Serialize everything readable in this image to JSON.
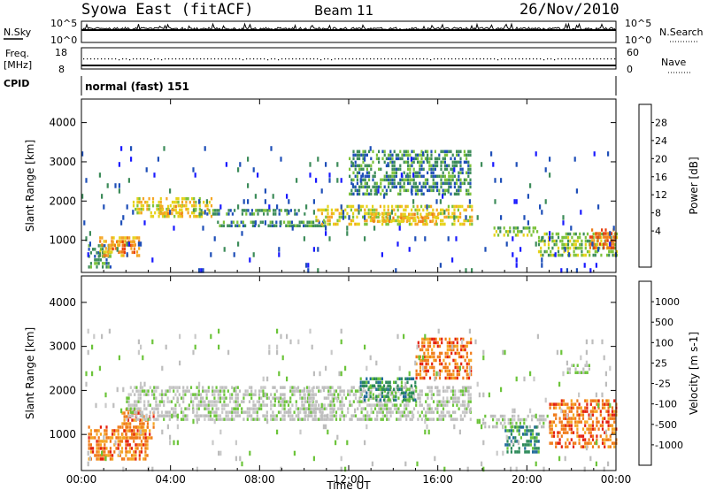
{
  "header": {
    "title": "Syowa East (fitACF)",
    "beam": "Beam 11",
    "date": "26/Nov/2010",
    "cpid_label": "CPID",
    "cpid_value": "normal (fast) 151"
  },
  "panels": {
    "noise": {
      "left_label": "N.Sky",
      "right_label": "N.Search",
      "left_ticks": [
        "10^5",
        "10^0"
      ],
      "right_ticks": [
        "10^5",
        "10^0"
      ]
    },
    "freq": {
      "left_label_1": "Freq.",
      "left_label_2": "[MHz]",
      "right_label": "Nave",
      "left_ticks": [
        "18",
        "8"
      ],
      "right_ticks": [
        "60",
        "0"
      ]
    }
  },
  "chart_data": [
    {
      "type": "heatmap",
      "name": "power",
      "ylabel": "Slant Range [km]",
      "xlabel": "",
      "x_ticks": [
        "00:00",
        "04:00",
        "08:00",
        "12:00",
        "16:00",
        "20:00",
        "00:00"
      ],
      "y_ticks": [
        1000,
        2000,
        3000,
        4000
      ],
      "ylim": [
        180,
        4600
      ],
      "colorbar": {
        "label": "Power [dB]",
        "ticks": [
          "4",
          "8",
          "12",
          "16",
          "20",
          "24",
          "28"
        ],
        "colors": [
          "#1a1aff",
          "#1f4fb8",
          "#3d8c5a",
          "#7cc23a",
          "#e6d21a",
          "#f5a623",
          "#f07a18",
          "#e8400e",
          "#dd1111"
        ]
      },
      "regions": [
        {
          "t": [
            0.3,
            1.3
          ],
          "r": [
            300,
            900
          ],
          "level": 2
        },
        {
          "t": [
            0.8,
            2.6
          ],
          "r": [
            600,
            1100
          ],
          "level": 5
        },
        {
          "t": [
            1.2,
            2.4
          ],
          "r": [
            700,
            1000
          ],
          "level": 6
        },
        {
          "t": [
            2.3,
            5.8
          ],
          "r": [
            1600,
            2100
          ],
          "level": 4
        },
        {
          "t": [
            3.5,
            4.5
          ],
          "r": [
            1700,
            1900
          ],
          "level": 5
        },
        {
          "t": [
            5.0,
            10.0
          ],
          "r": [
            1650,
            1800
          ],
          "level": 2
        },
        {
          "t": [
            6.0,
            11.0
          ],
          "r": [
            1350,
            1500
          ],
          "level": 2
        },
        {
          "t": [
            10.5,
            17.5
          ],
          "r": [
            1400,
            1900
          ],
          "level": 4
        },
        {
          "t": [
            13.0,
            16.0
          ],
          "r": [
            1500,
            1700
          ],
          "level": 5
        },
        {
          "t": [
            12.0,
            17.5
          ],
          "r": [
            2200,
            3300
          ],
          "level": 2
        },
        {
          "t": [
            18.5,
            20.5
          ],
          "r": [
            1100,
            1350
          ],
          "level": 3
        },
        {
          "t": [
            20.5,
            24.0
          ],
          "r": [
            600,
            1200
          ],
          "level": 3
        },
        {
          "t": [
            22.8,
            24.0
          ],
          "r": [
            800,
            1300
          ],
          "level": 6
        },
        {
          "t": [
            0.0,
            24.0
          ],
          "r": [
            250,
            3400
          ],
          "level": 1
        }
      ]
    },
    {
      "type": "heatmap",
      "name": "velocity",
      "ylabel": "Slant Range [km]",
      "xlabel": "Time UT",
      "x_ticks": [
        "00:00",
        "04:00",
        "08:00",
        "12:00",
        "16:00",
        "20:00",
        "00:00"
      ],
      "y_ticks": [
        1000,
        2000,
        3000,
        4000
      ],
      "ylim": [
        180,
        4600
      ],
      "colorbar": {
        "label": "Velocity [m s-1]",
        "ticks": [
          "1000",
          "500",
          "100",
          "25",
          "-25",
          "-100",
          "-500",
          "-1000"
        ],
        "colors": [
          "#1a2aa8",
          "#1f6a9a",
          "#2c8a5a",
          "#6cc43a",
          "#bdbdbd",
          "#c9c9c9",
          "#f5a623",
          "#f07a18",
          "#e4200e"
        ]
      },
      "regions": [
        {
          "t": [
            0.3,
            3.0
          ],
          "r": [
            400,
            1200
          ],
          "level": 7
        },
        {
          "t": [
            1.8,
            3.2
          ],
          "r": [
            900,
            1600
          ],
          "level": 7
        },
        {
          "t": [
            2.0,
            10.5
          ],
          "r": [
            1300,
            2100
          ],
          "level": 4
        },
        {
          "t": [
            10.0,
            17.5
          ],
          "r": [
            1300,
            2100
          ],
          "level": 4
        },
        {
          "t": [
            12.5,
            15.0
          ],
          "r": [
            1800,
            2300
          ],
          "level": 2
        },
        {
          "t": [
            15.0,
            17.5
          ],
          "r": [
            2300,
            3200
          ],
          "level": 7
        },
        {
          "t": [
            18.0,
            21.0
          ],
          "r": [
            1200,
            1450
          ],
          "level": 4
        },
        {
          "t": [
            19.0,
            20.5
          ],
          "r": [
            600,
            1200
          ],
          "level": 2
        },
        {
          "t": [
            21.0,
            24.0
          ],
          "r": [
            700,
            1800
          ],
          "level": 7
        },
        {
          "t": [
            21.8,
            22.8
          ],
          "r": [
            2400,
            2600
          ],
          "level": 4
        },
        {
          "t": [
            0.0,
            24.0
          ],
          "r": [
            250,
            3400
          ],
          "level": 4
        }
      ]
    }
  ]
}
